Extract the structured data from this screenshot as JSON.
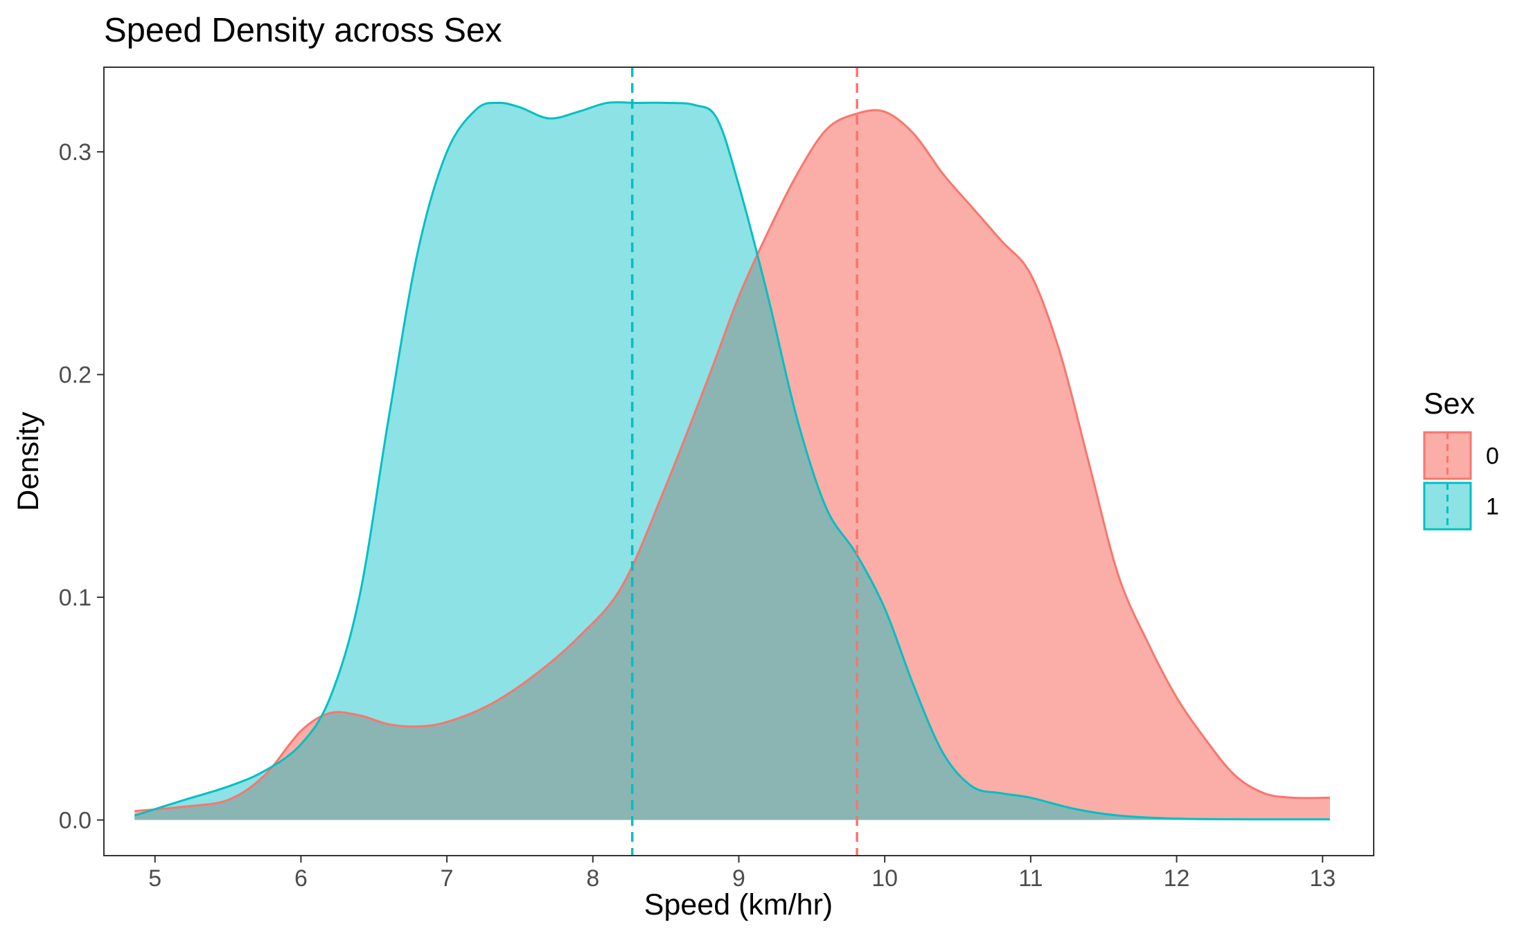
{
  "chart_data": {
    "type": "area",
    "title": "Speed Density across Sex",
    "xlabel": "Speed (km/hr)",
    "ylabel": "Density",
    "xlim": [
      4.65,
      13.35
    ],
    "ylim": [
      -0.016,
      0.338
    ],
    "xticks": [
      5,
      6,
      7,
      8,
      9,
      10,
      11,
      12,
      13
    ],
    "xtick_labels": [
      "5",
      "6",
      "7",
      "8",
      "9",
      "10",
      "11",
      "12",
      "13"
    ],
    "yticks": [
      0.0,
      0.1,
      0.2,
      0.3
    ],
    "ytick_labels": [
      "0.0",
      "0.1",
      "0.2",
      "0.3"
    ],
    "grid": false,
    "legend": {
      "title": "Sex",
      "position": "right"
    },
    "series": [
      {
        "name": "0",
        "color": "#F8766D",
        "fill": "#F8766D",
        "fill_opacity": 0.6,
        "mean": 9.81,
        "x": [
          4.86,
          5.2,
          5.5,
          5.75,
          6.0,
          6.2,
          6.4,
          6.6,
          6.8,
          7.0,
          7.3,
          7.6,
          7.9,
          8.2,
          8.5,
          8.8,
          9.0,
          9.2,
          9.4,
          9.6,
          9.8,
          10.0,
          10.2,
          10.4,
          10.6,
          10.8,
          11.0,
          11.2,
          11.4,
          11.6,
          11.8,
          12.0,
          12.2,
          12.4,
          12.6,
          12.8,
          13.05
        ],
        "y": [
          0.004,
          0.006,
          0.009,
          0.02,
          0.04,
          0.048,
          0.047,
          0.043,
          0.042,
          0.044,
          0.052,
          0.065,
          0.082,
          0.105,
          0.15,
          0.2,
          0.235,
          0.264,
          0.29,
          0.31,
          0.317,
          0.318,
          0.308,
          0.29,
          0.275,
          0.26,
          0.245,
          0.21,
          0.16,
          0.11,
          0.08,
          0.055,
          0.036,
          0.02,
          0.012,
          0.01,
          0.01
        ]
      },
      {
        "name": "1",
        "color": "#00BFC4",
        "fill": "#00BFC4",
        "fill_opacity": 0.45,
        "mean": 8.27,
        "x": [
          4.86,
          5.2,
          5.5,
          5.75,
          6.0,
          6.2,
          6.4,
          6.6,
          6.8,
          7.0,
          7.2,
          7.35,
          7.5,
          7.7,
          7.9,
          8.1,
          8.3,
          8.5,
          8.7,
          8.85,
          9.0,
          9.2,
          9.4,
          9.6,
          9.8,
          10.0,
          10.2,
          10.4,
          10.6,
          10.8,
          11.0,
          11.3,
          11.6,
          12.0,
          12.5,
          13.05
        ],
        "y": [
          0.002,
          0.009,
          0.015,
          0.022,
          0.034,
          0.055,
          0.1,
          0.18,
          0.255,
          0.3,
          0.319,
          0.322,
          0.32,
          0.315,
          0.318,
          0.322,
          0.322,
          0.322,
          0.321,
          0.315,
          0.285,
          0.235,
          0.18,
          0.14,
          0.12,
          0.095,
          0.06,
          0.03,
          0.015,
          0.012,
          0.01,
          0.005,
          0.002,
          0.0006,
          0.0003,
          0.0003
        ]
      }
    ]
  }
}
